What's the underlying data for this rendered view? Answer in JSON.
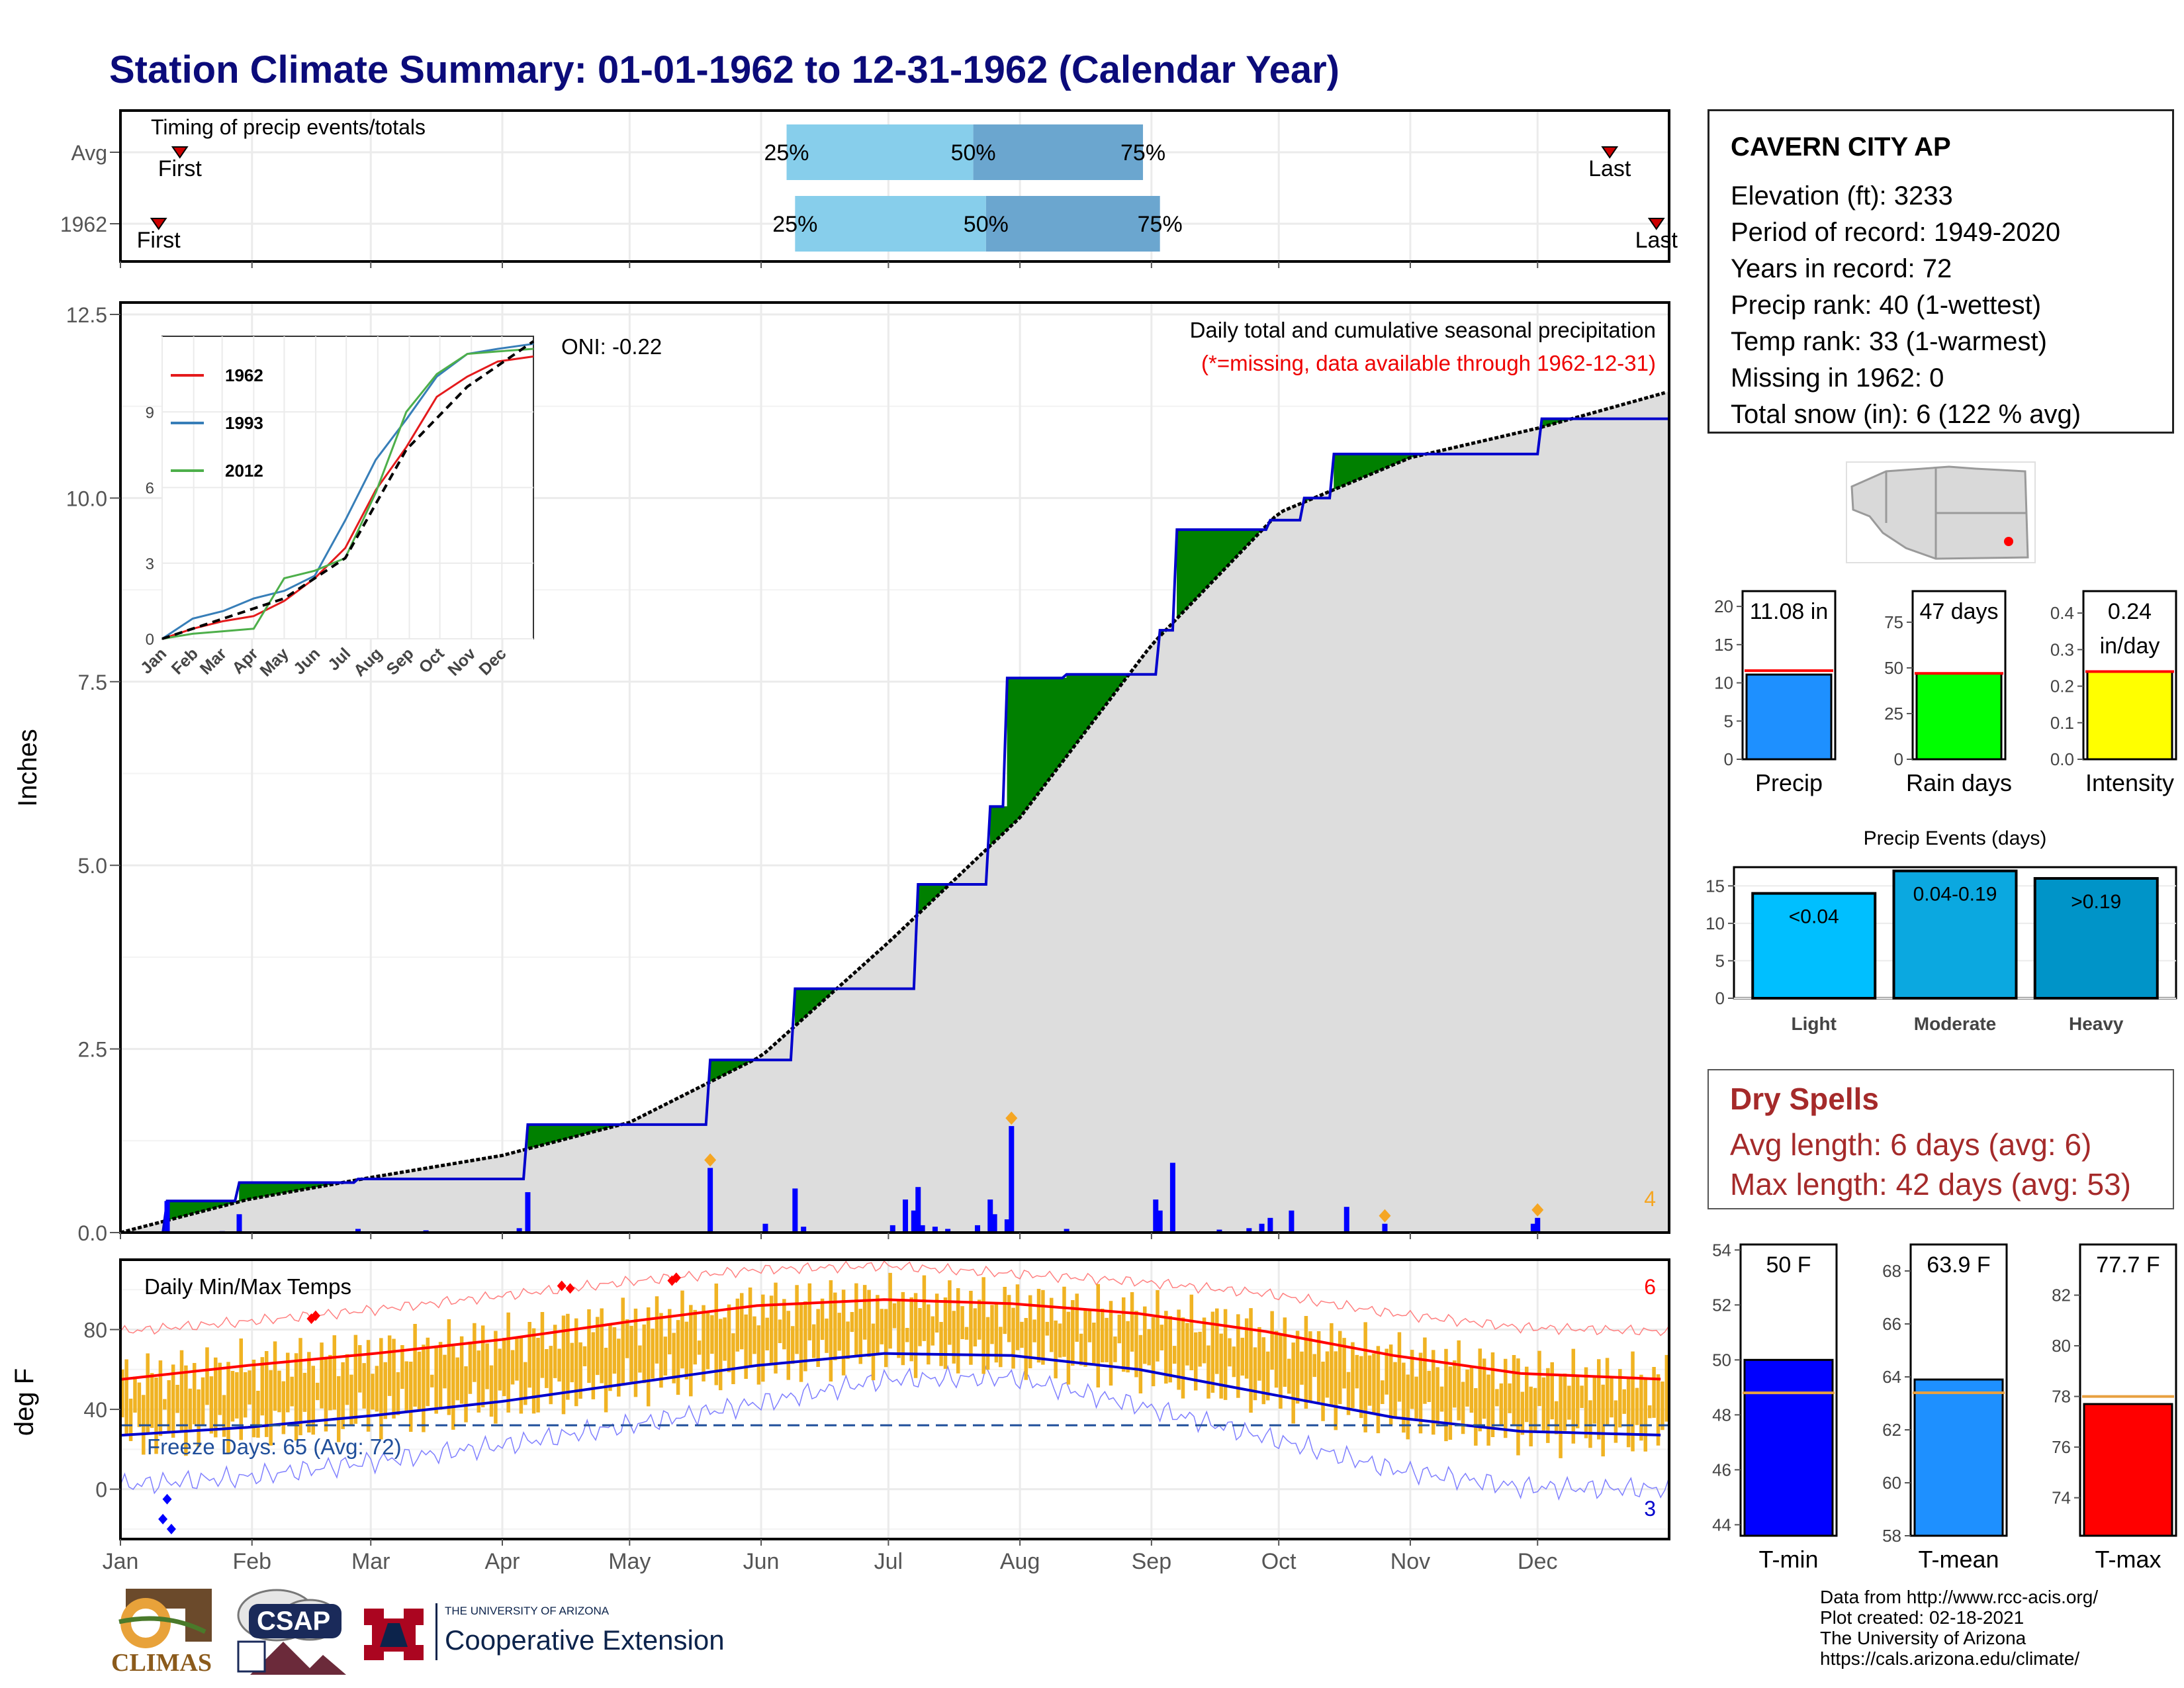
{
  "title": "Station Climate Summary: 01-01-1962 to 12-31-1962 (Calendar Year)",
  "colors": {
    "title": "#0b0b7a",
    "surplus": "#008000",
    "deficit": "#8b5a00",
    "cum_line": "#0000cc",
    "daily_bar": "#0000ff",
    "normal_fill": "#dddddd",
    "temp_bar": "#f0b323",
    "tmax_line": "#ff0000",
    "tmin_line": "#0000cc"
  },
  "station": {
    "name": "CAVERN CITY AP",
    "lines": [
      "Elevation (ft): 3233",
      "Period of record: 1949-2020",
      "Years in record: 72",
      "Precip rank: 40 (1-wettest)",
      "Temp rank: 33 (1-warmest)",
      "Missing in 1962: 0",
      "Total snow (in): 6 (122 % avg)"
    ]
  },
  "dry_spells": {
    "title": "Dry Spells",
    "avg_line": "Avg length: 6 days (avg: 6)",
    "max_line": "Max length: 42 days (avg: 53)"
  },
  "credits": [
    "Data from http://www.rcc-acis.org/",
    "Plot created: 02-18-2021",
    "The University of Arizona",
    "https://cals.arizona.edu/climate/"
  ],
  "logos": {
    "climas": "CLIMAS",
    "csap": "CSAP",
    "ua_small": "THE UNIVERSITY OF ARIZONA",
    "coop": "Cooperative Extension"
  },
  "chart_data": [
    {
      "type": "bar",
      "panel": "timing",
      "title": "Timing of precip events/totals",
      "rows": [
        {
          "label": "Avg",
          "first": "Jan 15",
          "p25": "Jun 7",
          "p50": "Jul 21",
          "p75": "Aug 30",
          "last": "Dec 18"
        },
        {
          "label": "1962",
          "first": "Jan 10",
          "p25": "Jun 9",
          "p50": "Jul 24",
          "p75": "Sep 3",
          "last": "Dec 29"
        }
      ],
      "marker_labels": {
        "first": "First",
        "last": "Last",
        "p25": "25%",
        "p50": "50%",
        "p75": "75%"
      }
    },
    {
      "type": "area",
      "panel": "precipitation",
      "title": "Daily total and cumulative seasonal precipitation",
      "subtitle": "(*=missing, data available through 1962-12-31)",
      "ylabel": "Inches",
      "ylim": [
        0,
        12.5
      ],
      "yticks": [
        "0.0",
        "2.5",
        "5.0",
        "7.5",
        "10.0",
        "12.5"
      ],
      "oni": "ONI: -0.22",
      "annotation_count": "4",
      "normal_cumulative": {
        "day": [
          0,
          30,
          59,
          90,
          120,
          151,
          181,
          212,
          243,
          273,
          304,
          334,
          365
        ],
        "value": [
          0,
          0.45,
          0.75,
          1.05,
          1.5,
          2.4,
          3.95,
          5.65,
          8.0,
          9.8,
          10.55,
          10.95,
          11.45
        ]
      },
      "cumulative_1962": {
        "day": [
          0,
          10,
          11,
          27,
          28,
          55,
          56,
          95,
          96,
          138,
          139,
          158,
          159,
          187,
          188,
          204,
          205,
          208,
          209,
          222,
          223,
          244,
          245,
          248,
          249,
          270,
          271,
          278,
          279,
          285,
          286,
          334,
          335,
          365
        ],
        "value": [
          0,
          0,
          0.43,
          0.43,
          0.68,
          0.68,
          0.73,
          0.73,
          1.47,
          1.47,
          2.35,
          2.35,
          3.32,
          3.32,
          4.74,
          4.74,
          5.8,
          5.8,
          7.55,
          7.55,
          7.6,
          7.6,
          8.2,
          8.2,
          9.57,
          9.57,
          9.7,
          9.7,
          10.0,
          10.0,
          10.6,
          10.6,
          11.08,
          11.08
        ]
      },
      "daily": [
        {
          "day": 11,
          "value": 0.43
        },
        {
          "day": 24,
          "value": 0.02
        },
        {
          "day": 28,
          "value": 0.25
        },
        {
          "day": 56,
          "value": 0.05
        },
        {
          "day": 72,
          "value": 0.03
        },
        {
          "day": 94,
          "value": 0.06
        },
        {
          "day": 96,
          "value": 0.55
        },
        {
          "day": 139,
          "value": 0.88,
          "flag": true
        },
        {
          "day": 152,
          "value": 0.12
        },
        {
          "day": 159,
          "value": 0.6
        },
        {
          "day": 161,
          "value": 0.08
        },
        {
          "day": 182,
          "value": 0.1
        },
        {
          "day": 185,
          "value": 0.45
        },
        {
          "day": 187,
          "value": 0.3
        },
        {
          "day": 188,
          "value": 0.62
        },
        {
          "day": 189,
          "value": 0.1
        },
        {
          "day": 192,
          "value": 0.08
        },
        {
          "day": 195,
          "value": 0.05
        },
        {
          "day": 202,
          "value": 0.1
        },
        {
          "day": 205,
          "value": 0.45
        },
        {
          "day": 206,
          "value": 0.25
        },
        {
          "day": 209,
          "value": 0.18
        },
        {
          "day": 210,
          "value": 1.45,
          "flag": true
        },
        {
          "day": 223,
          "value": 0.05
        },
        {
          "day": 244,
          "value": 0.45
        },
        {
          "day": 245,
          "value": 0.3
        },
        {
          "day": 248,
          "value": 0.95
        },
        {
          "day": 259,
          "value": 0.04
        },
        {
          "day": 266,
          "value": 0.06
        },
        {
          "day": 269,
          "value": 0.12
        },
        {
          "day": 271,
          "value": 0.2
        },
        {
          "day": 276,
          "value": 0.3
        },
        {
          "day": 289,
          "value": 0.35
        },
        {
          "day": 298,
          "value": 0.12,
          "flag": true
        },
        {
          "day": 333,
          "value": 0.12
        },
        {
          "day": 334,
          "value": 0.2,
          "flag": true
        }
      ],
      "inset": {
        "type": "line",
        "ylim": [
          0,
          12
        ],
        "yticks": [
          "0",
          "3",
          "6",
          "9"
        ],
        "xticks": [
          "Jan",
          "Feb",
          "Mar",
          "Apr",
          "May",
          "Jun",
          "Jul",
          "Aug",
          "Sep",
          "Oct",
          "Nov",
          "Dec"
        ],
        "series": [
          {
            "name": "1962",
            "color": "#e41a1c",
            "day": [
              0,
              30,
              60,
              90,
              120,
              150,
              180,
              210,
              240,
              270,
              300,
              330,
              365
            ],
            "value": [
              0,
              0.4,
              0.7,
              0.9,
              1.5,
              2.4,
              3.6,
              5.9,
              7.6,
              9.6,
              10.4,
              11.0,
              11.2
            ]
          },
          {
            "name": "1993",
            "color": "#377eb8",
            "day": [
              0,
              30,
              60,
              90,
              120,
              150,
              180,
              210,
              240,
              270,
              300,
              330,
              365
            ],
            "value": [
              0,
              0.8,
              1.1,
              1.6,
              1.9,
              2.5,
              4.7,
              7.1,
              8.7,
              10.4,
              11.3,
              11.5,
              11.7
            ]
          },
          {
            "name": "2012",
            "color": "#4daf4a",
            "day": [
              0,
              30,
              60,
              90,
              120,
              150,
              180,
              210,
              240,
              270,
              300,
              330,
              365
            ],
            "value": [
              0,
              0.2,
              0.3,
              0.4,
              2.4,
              2.7,
              3.2,
              5.8,
              9.0,
              10.5,
              11.3,
              11.4,
              11.5
            ]
          },
          {
            "name": "",
            "color": "#000000",
            "dash": true,
            "day": [
              0,
              60,
              120,
              180,
              240,
              300,
              365
            ],
            "value": [
              0,
              0.8,
              1.6,
              3.2,
              7.5,
              10.0,
              11.8
            ]
          }
        ]
      }
    },
    {
      "type": "bar",
      "panel": "temperature",
      "title": "Daily Min/Max Temps",
      "ylabel": "deg F",
      "ylim": [
        -25,
        115
      ],
      "yticks": [
        "0",
        "40",
        "80"
      ],
      "xticks": [
        "Jan",
        "Feb",
        "Mar",
        "Apr",
        "May",
        "Jun",
        "Jul",
        "Aug",
        "Sep",
        "Oct",
        "Nov",
        "Dec"
      ],
      "freeze_text": "Freeze Days: 65 (Avg: 72)",
      "freeze_line": 32,
      "record_high_count": "6",
      "record_low_count": "3",
      "normal_max": {
        "day": [
          0,
          30,
          60,
          90,
          120,
          150,
          180,
          210,
          240,
          270,
          300,
          330,
          365
        ],
        "value": [
          55,
          62,
          68,
          75,
          84,
          92,
          95,
          93,
          88,
          79,
          67,
          58,
          55
        ]
      },
      "normal_min": {
        "day": [
          0,
          30,
          60,
          90,
          120,
          150,
          180,
          210,
          240,
          270,
          300,
          330,
          365
        ],
        "value": [
          27,
          31,
          37,
          44,
          53,
          62,
          68,
          67,
          60,
          48,
          36,
          29,
          27
        ]
      },
      "record_max": {
        "day": [
          0,
          30,
          60,
          90,
          120,
          150,
          180,
          210,
          240,
          270,
          300,
          330,
          365
        ],
        "value": [
          79,
          84,
          90,
          97,
          104,
          110,
          112,
          108,
          104,
          98,
          88,
          81,
          79
        ]
      },
      "record_min": {
        "day": [
          0,
          30,
          60,
          90,
          120,
          150,
          180,
          210,
          240,
          270,
          300,
          330,
          365
        ],
        "value": [
          2,
          6,
          14,
          22,
          32,
          43,
          55,
          56,
          42,
          26,
          10,
          1,
          0
        ]
      },
      "record_high_days": [
        45,
        46,
        104,
        106,
        130,
        131
      ],
      "record_low_days": [
        10,
        11,
        12
      ]
    },
    {
      "type": "bar",
      "panel": "precip_totals",
      "categories": [
        "Precip",
        "Rain days",
        "Intensity"
      ],
      "values": [
        11.08,
        47,
        0.24
      ],
      "averages": [
        11.6,
        47,
        0.24
      ],
      "labels": [
        "11.08 in",
        "47 days",
        "0.24 in/day"
      ],
      "ylims": [
        [
          0,
          22
        ],
        [
          0,
          92
        ],
        [
          0,
          0.46
        ]
      ],
      "yticks": [
        [
          "0",
          "5",
          "10",
          "15",
          "20"
        ],
        [
          "0",
          "25",
          "50",
          "75"
        ],
        [
          "0.0",
          "0.1",
          "0.2",
          "0.3",
          "0.4"
        ]
      ],
      "bar_colors": [
        "#1e90ff",
        "#00ff00",
        "#ffff00"
      ]
    },
    {
      "type": "bar",
      "panel": "precip_events",
      "title": "Precip Events (days)",
      "categories": [
        "Light",
        "Moderate",
        "Heavy"
      ],
      "values": [
        14,
        17,
        16
      ],
      "labels": [
        "<0.04",
        "0.04-0.19",
        ">0.19"
      ],
      "ylim": [
        0,
        17.5
      ],
      "yticks": [
        "0",
        "5",
        "10",
        "15"
      ],
      "bar_colors": [
        "#00bfff",
        "#0ba8e0",
        "#0094c8"
      ]
    },
    {
      "type": "bar",
      "panel": "temp_means",
      "categories": [
        "T-min",
        "T-mean",
        "T-max"
      ],
      "values": [
        50.0,
        63.9,
        77.7
      ],
      "averages": [
        48.8,
        63.4,
        78.0
      ],
      "labels": [
        "50 F",
        "63.9 F",
        "77.7 F"
      ],
      "ylims": [
        [
          43.6,
          54.2
        ],
        [
          58,
          69
        ],
        [
          72.5,
          84
        ]
      ],
      "yticks": [
        [
          "44",
          "46",
          "48",
          "50",
          "52",
          "54"
        ],
        [
          "58",
          "60",
          "62",
          "64",
          "66",
          "68"
        ],
        [
          "74",
          "76",
          "78",
          "80",
          "82"
        ]
      ],
      "bar_colors": [
        "#0000ff",
        "#1e90ff",
        "#ff0000"
      ],
      "avg_color": "#e8a040"
    }
  ]
}
